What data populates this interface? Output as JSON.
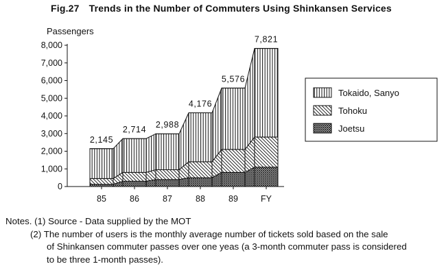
{
  "figure": {
    "label": "Fig.27",
    "title": "Trends in the Number of Commuters Using Shinkansen Services"
  },
  "chart_data": {
    "type": "area",
    "stacked": true,
    "ylabel": "Passengers",
    "xlabel": "",
    "ylim": [
      0,
      8000
    ],
    "yticks": [
      0,
      1000,
      2000,
      3000,
      4000,
      5000,
      6000,
      7000,
      8000
    ],
    "ytick_labels": [
      "0",
      "1,000",
      "2,000",
      "3,000",
      "4,000",
      "5,000",
      "6,000",
      "7,000",
      "8,000"
    ],
    "categories": [
      "85",
      "86",
      "87",
      "88",
      "89",
      "FY"
    ],
    "totals": [
      2145,
      2714,
      2988,
      4176,
      5576,
      7821
    ],
    "total_labels": [
      "2,145",
      "2,714",
      "2,988",
      "4,176",
      "5,576",
      "7,821"
    ],
    "series": [
      {
        "name": "Joetsu",
        "pattern": "crosshatch",
        "values": [
          130,
          300,
          400,
          500,
          800,
          1100
        ]
      },
      {
        "name": "Tohoku",
        "pattern": "diagonal",
        "values": [
          320,
          500,
          550,
          900,
          1300,
          1700
        ]
      },
      {
        "name": "Tokaido, Sanyo",
        "pattern": "vertical",
        "values": [
          1695,
          1914,
          2038,
          2776,
          3476,
          5021
        ]
      }
    ],
    "legend_order": [
      "Tokaido, Sanyo",
      "Tohoku",
      "Joetsu"
    ],
    "legend_position": "right",
    "grid": false
  },
  "notes": {
    "heading": "Notes.",
    "items": [
      "(1) Source - Data supplied by the MOT",
      "(2) The number of users is the monthly average number of tickets sold based on the sale"
    ],
    "continuation": [
      "of Shinkansen  commuter passes over one yeas (a 3-month commuter pass is considered",
      "to be three 1-month passes)."
    ]
  }
}
